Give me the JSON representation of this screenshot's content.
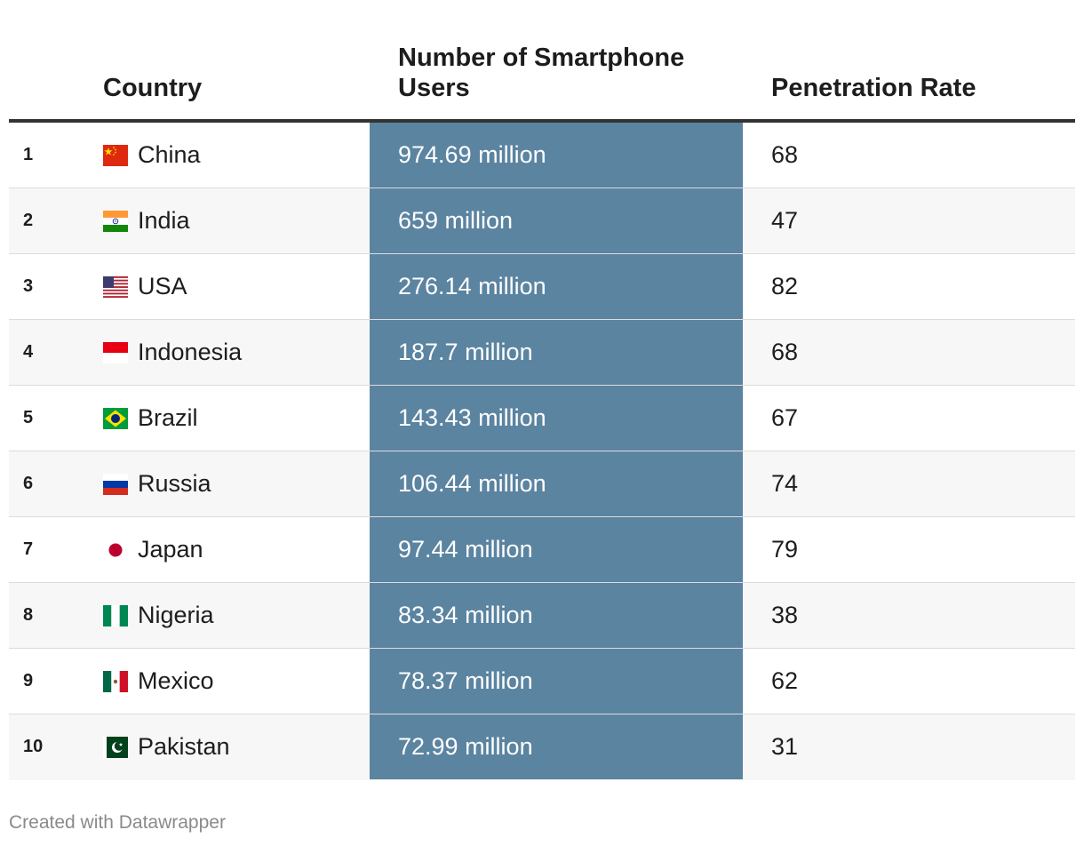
{
  "chart_data": {
    "type": "table",
    "columns": [
      "",
      "Country",
      "Number of Smartphone Users",
      "Penetration Rate"
    ],
    "rows": [
      {
        "rank": "1",
        "country": "China",
        "flag": "china-flag-icon",
        "users": "974.69 million",
        "rate": "68"
      },
      {
        "rank": "2",
        "country": "India",
        "flag": "india-flag-icon",
        "users": "659 million",
        "rate": "47"
      },
      {
        "rank": "3",
        "country": "USA",
        "flag": "usa-flag-icon",
        "users": "276.14 million",
        "rate": "82"
      },
      {
        "rank": "4",
        "country": "Indonesia",
        "flag": "indonesia-flag-icon",
        "users": "187.7 million",
        "rate": "68"
      },
      {
        "rank": "5",
        "country": "Brazil",
        "flag": "brazil-flag-icon",
        "users": "143.43 million",
        "rate": "67"
      },
      {
        "rank": "6",
        "country": "Russia",
        "flag": "russia-flag-icon",
        "users": "106.44 million",
        "rate": "74"
      },
      {
        "rank": "7",
        "country": "Japan",
        "flag": "japan-flag-icon",
        "users": "97.44 million",
        "rate": "79"
      },
      {
        "rank": "8",
        "country": "Nigeria",
        "flag": "nigeria-flag-icon",
        "users": "83.34 million",
        "rate": "38"
      },
      {
        "rank": "9",
        "country": "Mexico",
        "flag": "mexico-flag-icon",
        "users": "78.37 million",
        "rate": "62"
      },
      {
        "rank": "10",
        "country": "Pakistan",
        "flag": "pakistan-flag-icon",
        "users": "72.99 million",
        "rate": "31"
      }
    ],
    "highlight_column_color": "#5b84a0"
  },
  "footer": "Created with Datawrapper"
}
